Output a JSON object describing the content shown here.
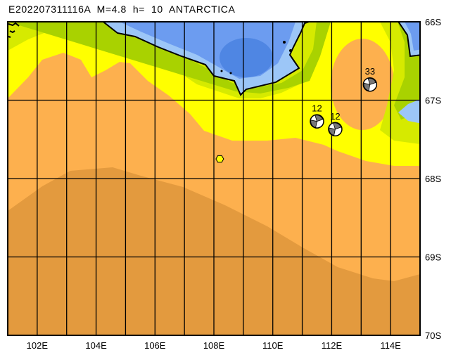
{
  "title": "E202207311116A  M=4.8  h=  10  ANTARCTICA",
  "map": {
    "lon_range": [
      101,
      115
    ],
    "lat_range": [
      66,
      70
    ],
    "lat_labels": [
      "66S",
      "67S",
      "68S",
      "69S",
      "70S"
    ],
    "lon_labels": [
      "102E",
      "104E",
      "106E",
      "108E",
      "110E",
      "112E",
      "114E"
    ],
    "colors": {
      "deep_orange": "#e39a3e",
      "orange": "#fdb04e",
      "yellow": "#ffff00",
      "yellow_green": "#d6ea00",
      "green": "#a9d200",
      "light_blue": "#9cc6f7",
      "blue": "#6c9cf0",
      "dark_blue": "#4f86e3",
      "epicenter": "#ffff00"
    }
  },
  "events": [
    {
      "label": "33",
      "lon": 113.3,
      "lat": 66.8
    },
    {
      "label": "12",
      "lon": 111.5,
      "lat": 67.27
    },
    {
      "label": "12",
      "lon": 112.12,
      "lat": 67.37
    }
  ],
  "epicenter": {
    "lon": 108.2,
    "lat": 67.75
  }
}
